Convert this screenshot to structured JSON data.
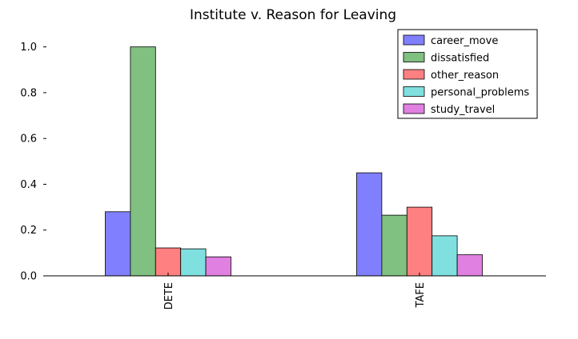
{
  "chart_data": {
    "type": "bar",
    "title": "Institute v. Reason for Leaving",
    "xlabel": "",
    "ylabel": "",
    "categories": [
      "DETE",
      "TAFE"
    ],
    "series": [
      {
        "name": "career_move",
        "color": "#8080fe",
        "values": [
          0.28,
          0.45
        ]
      },
      {
        "name": "dissatisfied",
        "color": "#80c080",
        "values": [
          1.0,
          0.265
        ]
      },
      {
        "name": "other_reason",
        "color": "#fe8080",
        "values": [
          0.122,
          0.3
        ]
      },
      {
        "name": "personal_problems",
        "color": "#80e0e0",
        "values": [
          0.118,
          0.175
        ]
      },
      {
        "name": "study_travel",
        "color": "#e080e0",
        "values": [
          0.083,
          0.092
        ]
      }
    ],
    "ylim": [
      0.0,
      1.1
    ],
    "yticks": [
      "0.0",
      "0.2",
      "0.4",
      "0.6",
      "0.8",
      "1.0"
    ],
    "legend_position": "top-right",
    "grid": false
  }
}
